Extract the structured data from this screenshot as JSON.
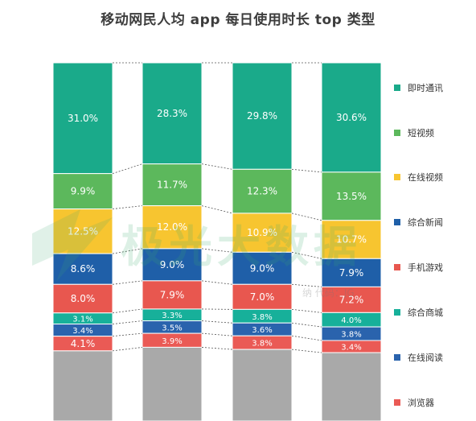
{
  "title": "移动网民人均 app 每日使用时长 top 类型",
  "watermark": {
    "brand_text": "极光大数据",
    "sub_text": "纳   代码：JG"
  },
  "chart_data": {
    "type": "bar",
    "stacked": true,
    "percent_stacked": true,
    "categories": [
      "",
      "",
      "",
      ""
    ],
    "series": [
      {
        "name": "即时通讯",
        "color": "#1aaa8a",
        "values": [
          31.0,
          28.3,
          29.8,
          30.6
        ]
      },
      {
        "name": "短视频",
        "color": "#5cb85c",
        "values": [
          9.9,
          11.7,
          12.3,
          13.5
        ]
      },
      {
        "name": "在线视频",
        "color": "#f7c530",
        "values": [
          12.5,
          12.0,
          10.9,
          10.7
        ]
      },
      {
        "name": "综合新闻",
        "color": "#1f5fa8",
        "values": [
          8.6,
          9.0,
          9.0,
          7.9
        ]
      },
      {
        "name": "手机游戏",
        "color": "#e8574f",
        "values": [
          8.0,
          7.9,
          7.0,
          7.2
        ]
      },
      {
        "name": "综合商城",
        "color": "#17b09a",
        "values": [
          3.1,
          3.3,
          3.8,
          4.0
        ]
      },
      {
        "name": "在线阅读",
        "color": "#2a63ad",
        "values": [
          3.4,
          3.5,
          3.6,
          3.8
        ]
      },
      {
        "name": "浏览器",
        "color": "#ea5a55",
        "values": [
          4.1,
          3.9,
          3.8,
          3.4
        ]
      }
    ],
    "labels": [
      [
        "31.0%",
        "28.3%",
        "29.8%",
        "30.6%"
      ],
      [
        "9.9%",
        "11.7%",
        "12.3%",
        "13.5%"
      ],
      [
        "12.5%",
        "12.0%",
        "10.9%",
        "10.7%"
      ],
      [
        "8.6%",
        "9.0%",
        "9.0%",
        "7.9%"
      ],
      [
        "8.0%",
        "7.9%",
        "7.0%",
        "7.2%"
      ],
      [
        "3.1%",
        "3.3%",
        "3.8%",
        "4.0%"
      ],
      [
        "3.4%",
        "3.5%",
        "3.6%",
        "3.8%"
      ],
      [
        "4.1%",
        "3.9%",
        "3.8%",
        "3.4%"
      ]
    ],
    "other_color": "#a9a9a9",
    "label_color": "#ffffff",
    "connector_style": "dotted",
    "legend_position": "right"
  }
}
